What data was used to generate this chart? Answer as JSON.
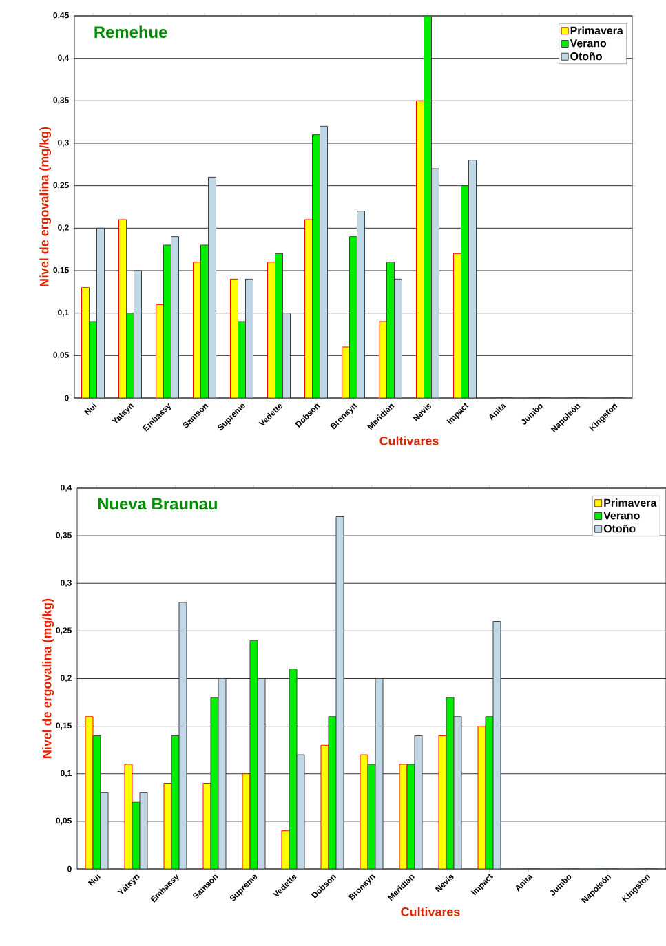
{
  "chart_data": [
    {
      "type": "bar",
      "title": "Remehue",
      "xlabel": "Cultivares",
      "ylabel": "Nivel de ergovalina (mg/kg)",
      "categories": [
        "Nui",
        "Yatsyn",
        "Embassy",
        "Samson",
        "Supreme",
        "Vedette",
        "Dobson",
        "Bronsyn",
        "Meridian",
        "Nevis",
        "Impact",
        "Anita",
        "Jumbo",
        "Napoleón",
        "Kingston"
      ],
      "series": [
        {
          "name": "Primavera",
          "color": "#ffff00",
          "values": [
            0.13,
            0.21,
            0.11,
            0.16,
            0.14,
            0.16,
            0.21,
            0.06,
            0.09,
            0.35,
            0.17,
            0,
            0,
            0,
            0
          ]
        },
        {
          "name": "Verano",
          "color": "#00ee00",
          "values": [
            0.09,
            0.1,
            0.18,
            0.18,
            0.09,
            0.17,
            0.31,
            0.19,
            0.16,
            0.45,
            0.25,
            0,
            0,
            0,
            0
          ]
        },
        {
          "name": "Otoño",
          "color": "#c0d8e6",
          "values": [
            0.2,
            0.15,
            0.19,
            0.26,
            0.14,
            0.1,
            0.32,
            0.22,
            0.14,
            0.27,
            0.28,
            0,
            0,
            0,
            0
          ]
        }
      ],
      "ylim": [
        0,
        0.45
      ],
      "yticks": [
        {
          "value": 0,
          "label": "0"
        },
        {
          "value": 0.05,
          "label": "0,05"
        },
        {
          "value": 0.1,
          "label": "0,1"
        },
        {
          "value": 0.15,
          "label": "0,15"
        },
        {
          "value": 0.2,
          "label": "0,2"
        },
        {
          "value": 0.25,
          "label": "0,25"
        },
        {
          "value": 0.3,
          "label": "0,3"
        },
        {
          "value": 0.35,
          "label": "0,35"
        },
        {
          "value": 0.4,
          "label": "0,4"
        },
        {
          "value": 0.45,
          "label": "0,45"
        }
      ],
      "grid": "y",
      "legend": "top right"
    },
    {
      "type": "bar",
      "title": "Nueva Braunau",
      "xlabel": "Cultivares",
      "ylabel": "Nivel de ergovalina (mg/kg)",
      "categories": [
        "Nui",
        "Yatsyn",
        "Embassy",
        "Samson",
        "Supreme",
        "Vedette",
        "Dobson",
        "Bronsyn",
        "Meridian",
        "Nevis",
        "Impact",
        "Anita",
        "Jumbo",
        "Napoleón",
        "Kingston"
      ],
      "series": [
        {
          "name": "Primavera",
          "color": "#ffff00",
          "values": [
            0.16,
            0.11,
            0.09,
            0.09,
            0.1,
            0.04,
            0.13,
            0.12,
            0.11,
            0.14,
            0.15,
            0,
            0,
            0,
            0
          ]
        },
        {
          "name": "Verano",
          "color": "#00ee00",
          "values": [
            0.14,
            0.07,
            0.14,
            0.18,
            0.24,
            0.21,
            0.16,
            0.11,
            0.11,
            0.18,
            0.16,
            0,
            0,
            0,
            0
          ]
        },
        {
          "name": "Otoño",
          "color": "#c0d8e6",
          "values": [
            0.08,
            0.08,
            0.28,
            0.2,
            0.2,
            0.12,
            0.37,
            0.2,
            0.14,
            0.16,
            0.26,
            0,
            0,
            0,
            0
          ]
        }
      ],
      "ylim": [
        0,
        0.4
      ],
      "yticks": [
        {
          "value": 0,
          "label": "0"
        },
        {
          "value": 0.05,
          "label": "0,05"
        },
        {
          "value": 0.1,
          "label": "0,1"
        },
        {
          "value": 0.15,
          "label": "0,15"
        },
        {
          "value": 0.2,
          "label": "0,2"
        },
        {
          "value": 0.25,
          "label": "0,25"
        },
        {
          "value": 0.3,
          "label": "0,3"
        },
        {
          "value": 0.35,
          "label": "0,35"
        },
        {
          "value": 0.4,
          "label": "0,4"
        }
      ],
      "grid": "y",
      "legend": "top right"
    }
  ]
}
